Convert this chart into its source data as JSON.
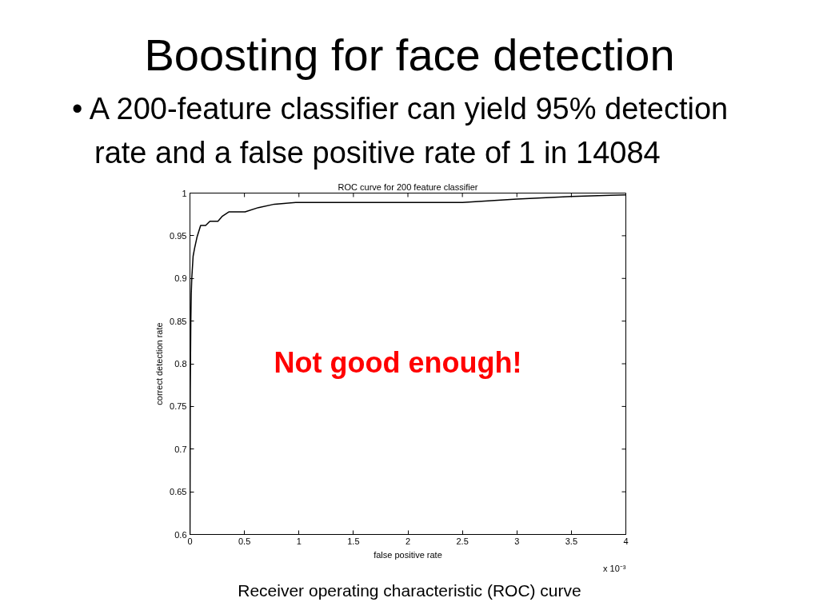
{
  "chart_data": {
    "type": "line",
    "title": "Boosting for face detection",
    "subtitle": "• A 200-feature classifier can yield 95% detection rate and a false positive rate of 1 in 14084",
    "xlabel": "false positive rate",
    "ylabel": "correct detection rate",
    "annotations": [
      "ROC curve for 200 feature classifier",
      "x 10⁻³",
      "Not good enough!",
      "Receiver operating characteristic (ROC) curve"
    ],
    "x": [
      0,
      0.003,
      0.008,
      0.012,
      0.017,
      0.029,
      0.042,
      0.066,
      0.098,
      0.144,
      0.183,
      0.257,
      0.298,
      0.359,
      0.506,
      0.628,
      0.775,
      0.971,
      2.5,
      3,
      3.5,
      4
    ],
    "series": [
      {
        "color": "#000000",
        "values": [
          0.6,
          0.77,
          0.85,
          0.882,
          0.901,
          0.926,
          0.935,
          0.949,
          0.962,
          0.962,
          0.967,
          0.967,
          0.973,
          0.978,
          0.978,
          0.983,
          0.987,
          0.989,
          0.989,
          0.993,
          0.996,
          0.998
        ]
      }
    ],
    "xlim": [
      0,
      4
    ],
    "ylim": [
      0.6,
      1
    ],
    "xticks": [
      0,
      0.5,
      1,
      1.5,
      2,
      2.5,
      3,
      3.5,
      4
    ],
    "yticks": [
      0.6,
      0.65,
      0.7,
      0.75,
      0.8,
      0.85,
      0.9,
      0.95,
      1
    ],
    "line_style": "solid"
  }
}
